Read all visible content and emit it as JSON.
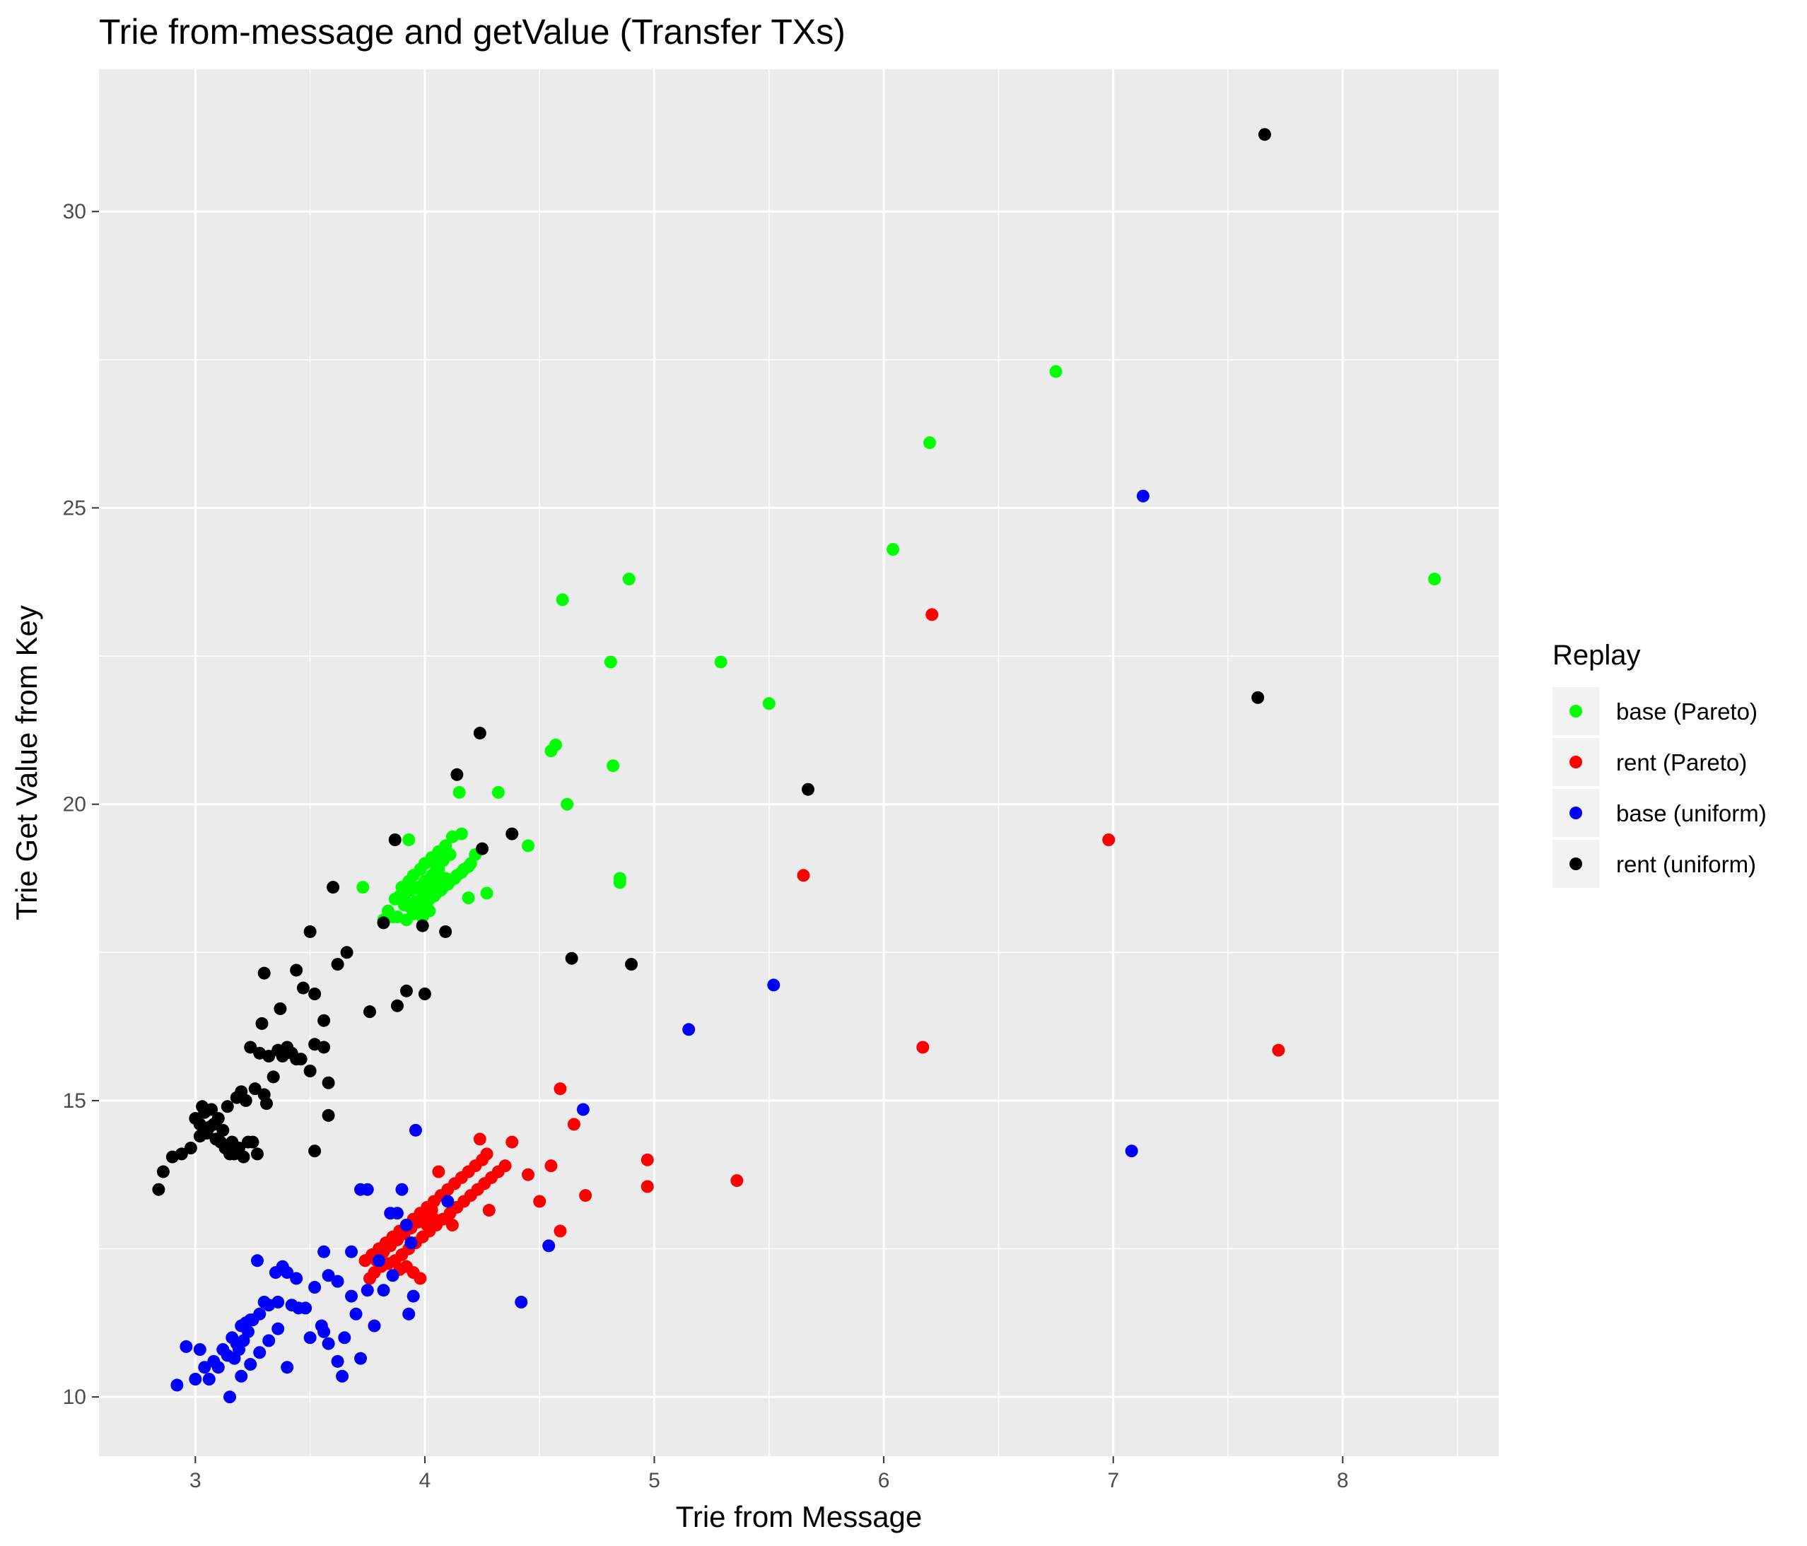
{
  "chart_data": {
    "type": "scatter",
    "title": "Trie from-message and getValue (Transfer TXs)",
    "xlabel": "Trie from Message",
    "ylabel": "Trie Get Value from Key",
    "xlim": [
      2.58,
      8.68
    ],
    "ylim": [
      9.0,
      32.4
    ],
    "xticks": [
      3,
      4,
      5,
      6,
      7,
      8
    ],
    "yticks": [
      10,
      15,
      20,
      25,
      30
    ],
    "grid": true,
    "legend": {
      "title": "Replay",
      "position": "right"
    },
    "series": [
      {
        "name": "base (Pareto)",
        "color": "#00ff00",
        "x": [
          6.75,
          6.2,
          6.04,
          8.4,
          4.89,
          4.6,
          4.81,
          5.29,
          5.5,
          4.57,
          4.55,
          4.82,
          4.15,
          4.32,
          4.62,
          3.93,
          3.73,
          4.45,
          4.85,
          4.85,
          4.27,
          4.19,
          4.16,
          4.12,
          4.09,
          4.06,
          4.03,
          4.0,
          3.98,
          3.95,
          3.93,
          3.9,
          3.87,
          3.84,
          3.82,
          4.0,
          4.02,
          4.05,
          4.08,
          4.11,
          4.14,
          4.17,
          4.2,
          4.22,
          3.96,
          3.99,
          4.01,
          4.04,
          4.07,
          3.94,
          3.97,
          4.0,
          4.03,
          4.06,
          4.09,
          3.91,
          3.88,
          3.92,
          3.95,
          3.98,
          4.01,
          4.04,
          4.07,
          4.1,
          4.13,
          4.16,
          4.19,
          3.89,
          3.86,
          3.97,
          4.0,
          4.03,
          4.06,
          3.94,
          3.91,
          4.05,
          4.08,
          4.11,
          4.02,
          3.99
        ],
        "y": [
          27.3,
          26.1,
          24.3,
          23.8,
          23.8,
          23.45,
          22.4,
          22.4,
          21.7,
          21.0,
          20.9,
          20.65,
          20.2,
          20.2,
          20.0,
          19.4,
          18.6,
          19.3,
          18.75,
          18.68,
          18.5,
          18.42,
          19.5,
          19.45,
          19.3,
          19.2,
          19.1,
          19.0,
          18.9,
          18.8,
          18.7,
          18.6,
          18.4,
          18.2,
          18.05,
          18.3,
          18.4,
          18.5,
          18.6,
          18.7,
          18.8,
          18.9,
          19.0,
          19.15,
          18.35,
          18.45,
          18.55,
          18.65,
          18.75,
          18.25,
          18.35,
          18.45,
          18.55,
          18.65,
          18.75,
          18.3,
          18.1,
          18.05,
          18.15,
          18.25,
          18.35,
          18.45,
          18.55,
          18.65,
          18.75,
          18.85,
          18.95,
          18.45,
          18.1,
          18.6,
          18.7,
          18.8,
          18.9,
          18.55,
          18.4,
          18.95,
          19.05,
          19.15,
          18.2,
          18.1
        ]
      },
      {
        "name": "rent (Pareto)",
        "color": "#ff0000",
        "x": [
          6.21,
          5.65,
          6.98,
          6.17,
          7.72,
          4.59,
          4.65,
          4.55,
          4.97,
          4.97,
          5.36,
          4.45,
          4.38,
          4.24,
          4.28,
          4.06,
          4.5,
          4.7,
          4.59,
          4.27,
          4.25,
          4.22,
          4.19,
          4.16,
          4.13,
          4.1,
          4.07,
          4.04,
          4.01,
          3.98,
          3.95,
          3.92,
          3.89,
          3.86,
          3.83,
          3.8,
          3.77,
          3.74,
          4.35,
          4.32,
          4.29,
          4.26,
          4.23,
          4.2,
          4.17,
          4.14,
          4.11,
          4.08,
          4.05,
          4.02,
          3.99,
          3.96,
          3.93,
          3.9,
          3.87,
          3.84,
          3.81,
          3.78,
          3.76,
          3.79,
          3.82,
          3.85,
          3.88,
          3.91,
          3.94,
          3.97,
          4.0,
          4.03,
          3.98,
          3.95,
          3.92,
          3.89,
          4.01,
          4.04,
          4.12
        ],
        "y": [
          23.2,
          18.8,
          19.4,
          15.9,
          15.85,
          15.2,
          14.6,
          13.9,
          14.0,
          13.55,
          13.65,
          13.75,
          14.3,
          14.35,
          13.15,
          13.8,
          13.3,
          13.4,
          12.8,
          14.1,
          14.0,
          13.9,
          13.8,
          13.7,
          13.6,
          13.5,
          13.4,
          13.3,
          13.2,
          13.1,
          13.0,
          12.9,
          12.8,
          12.7,
          12.6,
          12.5,
          12.4,
          12.3,
          13.9,
          13.8,
          13.7,
          13.6,
          13.5,
          13.4,
          13.3,
          13.2,
          13.1,
          13.0,
          12.9,
          12.8,
          12.7,
          12.6,
          12.5,
          12.4,
          12.3,
          12.25,
          12.2,
          12.1,
          12.0,
          12.3,
          12.45,
          12.55,
          12.65,
          12.75,
          12.85,
          12.95,
          13.05,
          13.15,
          12.0,
          12.1,
          12.2,
          12.15,
          12.9,
          13.0,
          12.9
        ]
      },
      {
        "name": "base (uniform)",
        "color": "#0000ff",
        "x": [
          7.13,
          5.52,
          5.15,
          7.08,
          4.69,
          4.54,
          4.42,
          3.96,
          3.95,
          3.93,
          3.9,
          3.85,
          3.75,
          3.72,
          3.88,
          3.92,
          4.1,
          3.82,
          3.7,
          3.62,
          3.56,
          3.52,
          3.48,
          3.44,
          3.4,
          3.36,
          3.32,
          3.28,
          3.24,
          3.2,
          3.16,
          3.12,
          3.08,
          3.04,
          3.0,
          2.96,
          2.92,
          3.27,
          3.35,
          3.45,
          3.55,
          3.65,
          3.75,
          3.8,
          3.58,
          3.62,
          3.68,
          3.72,
          3.56,
          3.5,
          3.42,
          3.38,
          3.3,
          3.22,
          3.18,
          3.14,
          3.1,
          3.06,
          3.02,
          3.2,
          3.24,
          3.28,
          3.32,
          3.36,
          3.4,
          3.15,
          3.17,
          3.19,
          3.21,
          3.23,
          3.25,
          3.58,
          3.64,
          3.68,
          3.78,
          3.86,
          3.94
        ],
        "y": [
          25.2,
          16.95,
          16.2,
          14.15,
          14.85,
          12.55,
          11.6,
          14.5,
          11.7,
          11.4,
          13.5,
          13.1,
          13.5,
          13.5,
          13.1,
          12.9,
          13.3,
          11.8,
          11.4,
          11.95,
          12.45,
          11.85,
          11.5,
          12.0,
          12.1,
          11.6,
          11.55,
          11.4,
          11.3,
          11.2,
          11.0,
          10.8,
          10.6,
          10.5,
          10.3,
          10.85,
          10.2,
          12.3,
          12.1,
          11.5,
          11.2,
          11.0,
          11.8,
          12.3,
          10.9,
          10.6,
          11.7,
          10.65,
          11.1,
          11.0,
          11.55,
          12.2,
          11.6,
          11.25,
          10.9,
          10.7,
          10.5,
          10.3,
          10.8,
          10.35,
          10.55,
          10.75,
          10.95,
          11.15,
          10.5,
          10.0,
          10.65,
          10.8,
          10.95,
          11.1,
          11.3,
          12.05,
          10.35,
          12.45,
          11.2,
          12.05,
          12.6
        ]
      },
      {
        "name": "rent (uniform)",
        "color": "#000000",
        "x": [
          7.66,
          7.63,
          5.67,
          4.24,
          4.14,
          4.38,
          4.64,
          4.9,
          3.87,
          3.6,
          3.66,
          3.5,
          3.44,
          3.62,
          3.47,
          3.92,
          4.0,
          3.88,
          3.76,
          3.56,
          3.52,
          3.37,
          3.3,
          3.29,
          3.56,
          3.58,
          3.52,
          3.5,
          3.46,
          3.42,
          3.38,
          3.34,
          3.3,
          3.26,
          3.22,
          3.18,
          3.14,
          3.1,
          3.06,
          3.02,
          2.98,
          2.94,
          2.9,
          2.86,
          2.84,
          3.24,
          3.28,
          3.32,
          3.36,
          3.4,
          3.44,
          3.2,
          3.16,
          3.12,
          3.08,
          3.04,
          3.0,
          3.03,
          3.07,
          3.11,
          3.15,
          3.19,
          3.23,
          3.27,
          3.31,
          3.02,
          3.05,
          3.09,
          3.13,
          3.17,
          3.21,
          3.25,
          3.52,
          3.58,
          3.82,
          3.99,
          4.09,
          4.25
        ],
        "y": [
          31.3,
          21.8,
          20.25,
          21.2,
          20.5,
          19.5,
          17.4,
          17.3,
          19.4,
          18.6,
          17.5,
          17.85,
          17.2,
          17.3,
          16.9,
          16.85,
          16.8,
          16.6,
          16.5,
          16.35,
          16.8,
          16.55,
          17.15,
          16.3,
          15.9,
          15.3,
          15.95,
          15.5,
          15.7,
          15.8,
          15.75,
          15.4,
          15.1,
          15.2,
          15.0,
          15.05,
          14.9,
          14.7,
          14.55,
          14.4,
          14.2,
          14.1,
          14.05,
          13.8,
          13.5,
          15.9,
          15.8,
          15.75,
          15.85,
          15.9,
          15.7,
          15.15,
          14.3,
          14.5,
          14.6,
          14.8,
          14.7,
          14.9,
          14.85,
          14.3,
          14.1,
          14.2,
          14.3,
          14.1,
          14.95,
          14.6,
          14.45,
          14.35,
          14.2,
          14.1,
          14.05,
          14.3,
          14.15,
          14.75,
          18.0,
          17.95,
          17.85,
          19.25
        ]
      }
    ]
  }
}
